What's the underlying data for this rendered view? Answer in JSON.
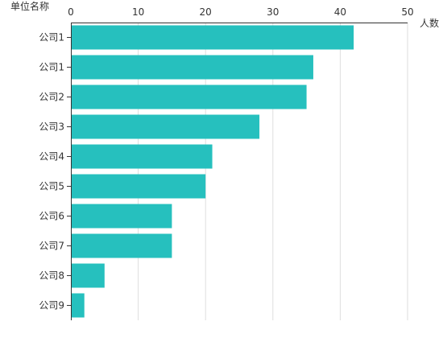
{
  "chart_data": {
    "type": "bar",
    "orientation": "horizontal",
    "title": "",
    "xlabel": "人数",
    "ylabel": "单位名称",
    "xlim": [
      0,
      50
    ],
    "xticks": [
      0,
      10,
      20,
      30,
      40,
      50
    ],
    "grid": true,
    "categories": [
      "公司1",
      "公司1",
      "公司2",
      "公司3",
      "公司4",
      "公司5",
      "公司6",
      "公司7",
      "公司8",
      "公司9"
    ],
    "values": [
      42,
      36,
      35,
      28,
      21,
      20,
      15,
      15,
      5,
      2
    ],
    "bar_color": "#26c0be"
  }
}
